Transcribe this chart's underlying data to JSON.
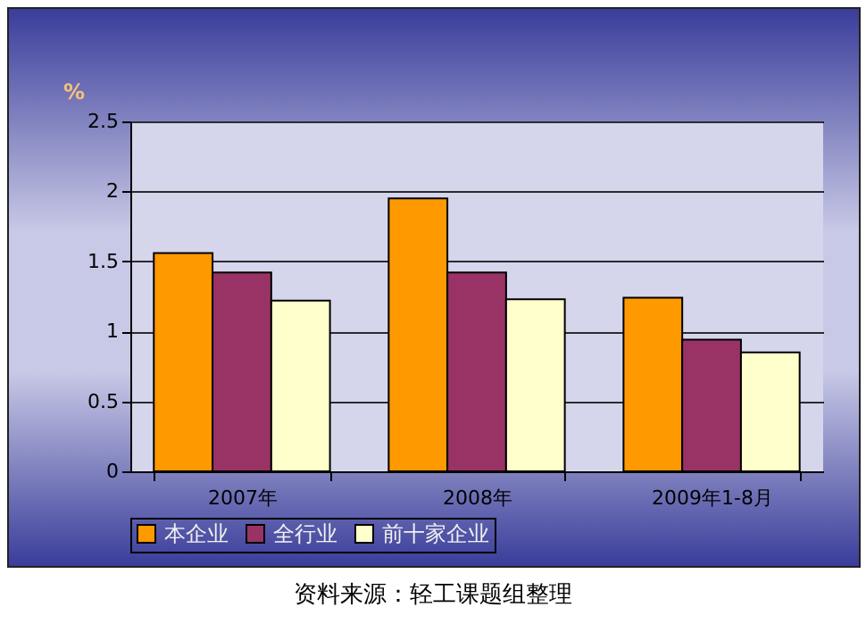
{
  "chart_data": {
    "type": "bar",
    "ylabel": "%",
    "categories": [
      "2007年",
      "2008年",
      "2009年1-8月"
    ],
    "series": [
      {
        "name": "本企业",
        "color": "#ff9900",
        "values": [
          1.56,
          1.95,
          1.24
        ]
      },
      {
        "name": "全行业",
        "color": "#993366",
        "values": [
          1.42,
          1.42,
          0.94
        ]
      },
      {
        "name": "前十家企业",
        "color": "#ffffcc",
        "values": [
          1.22,
          1.23,
          0.85
        ]
      }
    ],
    "ylim": [
      0,
      2.5
    ],
    "yticks": [
      0,
      0.5,
      1,
      1.5,
      2,
      2.5
    ],
    "grid": "y",
    "legend": "bottom",
    "annotations": [
      "资料来源：轻工课题组整理"
    ]
  }
}
